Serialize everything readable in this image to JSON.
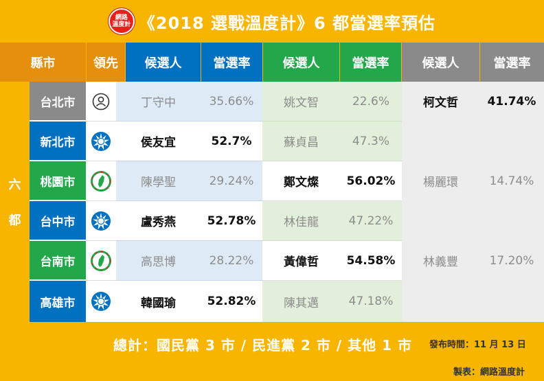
{
  "title": {
    "logo_line1": "網路",
    "logo_line2": "溫度計",
    "text": "《2018 選戰溫度計》6 都當選率預估"
  },
  "headers": {
    "city": "縣市",
    "lead": "領先",
    "cand1": "候選人",
    "rate1": "當選率",
    "cand2": "候選人",
    "rate2": "當選率",
    "cand3": "候選人",
    "rate3": "當選率"
  },
  "group_label": [
    "六",
    "都"
  ],
  "colors": {
    "gold": "#f7b500",
    "orange_header": "#e58f0c",
    "blue_header": "#0070c0",
    "green_header": "#22a84a",
    "gray_header": "#8a8a8a",
    "kmt_blue": "#0070c0",
    "dpp_green": "#22a84a"
  },
  "rows": [
    {
      "city": "台北市",
      "lead_icon": "independent-person-icon",
      "c1": "丁守中",
      "r1": "35.66%",
      "c2": "姚文智",
      "r2": "22.6%",
      "c3": "柯文哲",
      "r3": "41.74%"
    },
    {
      "city": "新北市",
      "lead_icon": "kmt-sun-icon",
      "c1": "侯友宜",
      "r1": "52.7%",
      "c2": "蘇貞昌",
      "r2": "47.3%",
      "c3": "",
      "r3": ""
    },
    {
      "city": "桃園市",
      "lead_icon": "dpp-taiwan-icon",
      "c1": "陳學聖",
      "r1": "29.24%",
      "c2": "鄭文燦",
      "r2": "56.02%",
      "c3": "楊麗環",
      "r3": "14.74%"
    },
    {
      "city": "台中市",
      "lead_icon": "kmt-sun-icon",
      "c1": "盧秀燕",
      "r1": "52.78%",
      "c2": "林佳龍",
      "r2": "47.22%",
      "c3": "",
      "r3": ""
    },
    {
      "city": "台南市",
      "lead_icon": "dpp-taiwan-icon",
      "c1": "高思博",
      "r1": "28.22%",
      "c2": "黃偉哲",
      "r2": "54.58%",
      "c3": "林義豐",
      "r3": "17.20%"
    },
    {
      "city": "高雄市",
      "lead_icon": "kmt-sun-icon",
      "c1": "韓國瑜",
      "r1": "52.82%",
      "c2": "陳其邁",
      "r2": "47.18%",
      "c3": "",
      "r3": ""
    }
  ],
  "footer": {
    "summary": "總計：國民黨 3 市 / 民進黨 2 市 / 其他 1 市",
    "date": "發布時間：11 月 13 日",
    "maker": "製表：網路溫度計"
  }
}
